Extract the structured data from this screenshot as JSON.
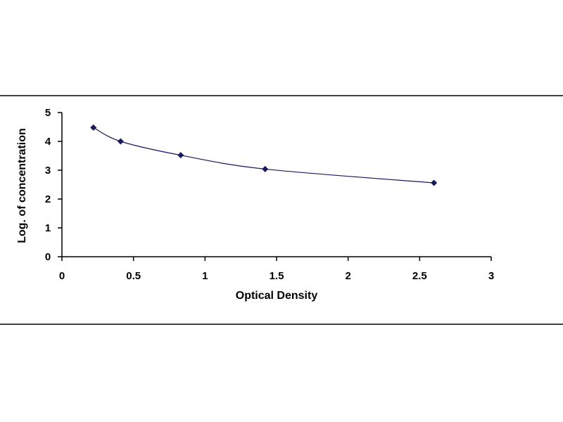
{
  "chart_data": {
    "type": "scatter",
    "title": "",
    "xlabel": "Optical Density",
    "ylabel": "Log. of concentration",
    "xlim": [
      0,
      3
    ],
    "ylim": [
      0,
      5
    ],
    "xticks": [
      0,
      0.5,
      1,
      1.5,
      2,
      2.5,
      3
    ],
    "xtick_labels": [
      "0",
      "0.5",
      "1",
      "1.5",
      "2",
      "2.5",
      "3"
    ],
    "yticks": [
      0,
      1,
      2,
      3,
      4,
      5
    ],
    "ytick_labels": [
      "0",
      "1",
      "2",
      "3",
      "4",
      "5"
    ],
    "grid": false,
    "legend": "none",
    "series": [
      {
        "x": [
          0.22,
          0.41,
          0.83,
          1.42,
          2.6
        ],
        "y": [
          4.48,
          4.0,
          3.52,
          3.04,
          2.56
        ],
        "marker": "diamond",
        "trendline": "smooth",
        "color": "#1a1a5e"
      }
    ],
    "frame_color": "#000000"
  }
}
